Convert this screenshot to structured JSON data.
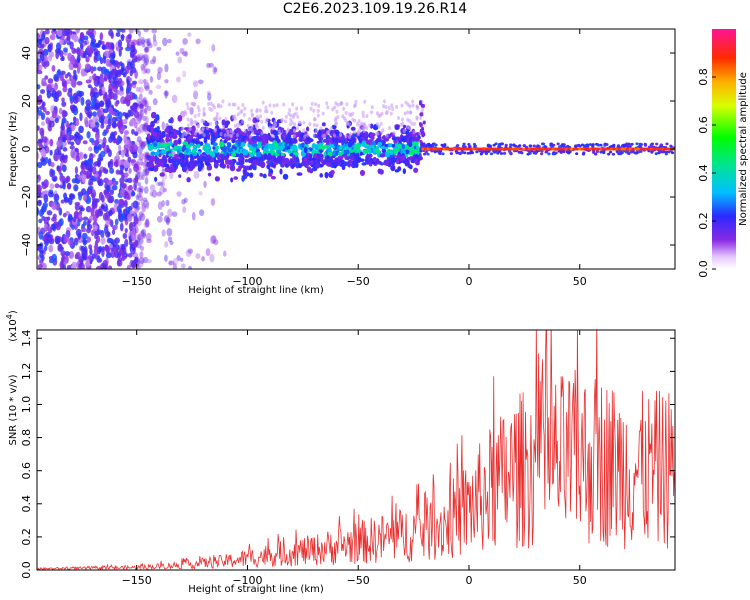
{
  "title": "C2E6.2023.109.19.26.R14",
  "chart_data": [
    {
      "type": "heatmap",
      "xlabel": "Height of straight line (km)",
      "ylabel": "Frequency (Hz)",
      "xlim": [
        -195,
        93
      ],
      "ylim": [
        -50,
        50
      ],
      "xticks": [
        -150,
        -100,
        -50,
        0,
        50
      ],
      "yticks": [
        -40,
        -20,
        0,
        20,
        40
      ],
      "colorbar": {
        "label": "Normalized spectral amplitude",
        "range": [
          0,
          1
        ],
        "ticks": [
          "0.0",
          "0.2",
          "0.4",
          "0.6",
          "0.8"
        ],
        "colormap": "rainbow (white-violet-blue-cyan-green-yellow-orange-red-magenta)"
      },
      "description_regions": [
        {
          "x_range": [
            -195,
            -145
          ],
          "freq_spread_hz": 50,
          "amplitude": "0.1-0.25"
        },
        {
          "x_range": [
            -145,
            -22
          ],
          "freq_spread_hz": 8,
          "amplitude": "0.2-0.45"
        },
        {
          "x_range": [
            -22,
            93
          ],
          "freq_spread_hz": 2,
          "amplitude": "0.8-1.0"
        }
      ]
    },
    {
      "type": "line",
      "xlabel": "Height of straight line (km)",
      "ylabel": "SNR (10 * v/v)",
      "y_multiplier": "(x10^4)",
      "xlim": [
        -195,
        93
      ],
      "ylim": [
        0,
        1.45
      ],
      "xticks": [
        -150,
        -100,
        -50,
        0,
        50
      ],
      "yticks": [
        "0.0",
        "0.2",
        "0.4",
        "0.6",
        "0.8",
        "1.0",
        "1.2",
        "1.4"
      ],
      "series_color": "#e83030",
      "envelope": {
        "x": [
          -195,
          -150,
          -130,
          -110,
          -90,
          -70,
          -50,
          -30,
          -20,
          -10,
          0,
          10,
          20,
          30,
          40,
          50,
          60,
          70,
          80,
          93
        ],
        "y": [
          0.01,
          0.02,
          0.04,
          0.07,
          0.12,
          0.16,
          0.22,
          0.28,
          0.32,
          0.38,
          0.5,
          0.65,
          0.78,
          0.85,
          0.88,
          0.9,
          0.88,
          0.82,
          0.8,
          0.82
        ]
      }
    }
  ]
}
